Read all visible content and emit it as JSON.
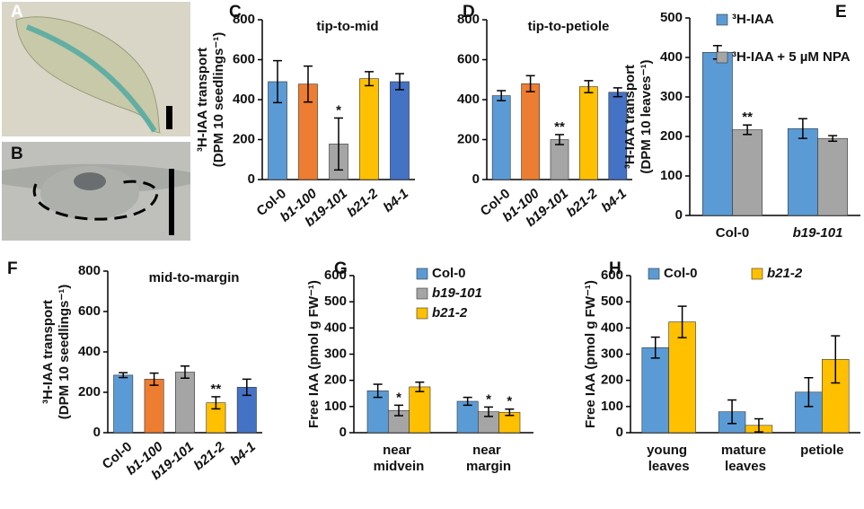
{
  "panels": [
    "A",
    "B"
  ],
  "chart_data": [
    {
      "type": "bar",
      "panel": "C",
      "title": "tip-to-mid",
      "ylabel": [
        "³H-IAA transport",
        "(DPM 10 seedlings⁻¹)"
      ],
      "categories": [
        "Col-0",
        "b1-100",
        "b19-101",
        "b21-2",
        "b4-1"
      ],
      "values": [
        490,
        478,
        178,
        505,
        490
      ],
      "errors": [
        105,
        90,
        130,
        35,
        40
      ],
      "colors": [
        "#5b9bd5",
        "#ed7d31",
        "#a5a5a5",
        "#ffc000",
        "#4472c4"
      ],
      "annotations": [
        null,
        null,
        "*",
        null,
        null
      ],
      "ylim": [
        0,
        800
      ],
      "yticks": [
        0,
        200,
        400,
        600,
        800
      ]
    },
    {
      "type": "bar",
      "panel": "D",
      "title": "tip-to-petiole",
      "categories": [
        "Col-0",
        "b1-100",
        "b19-101",
        "b21-2",
        "b4-1"
      ],
      "values": [
        420,
        480,
        200,
        465,
        437
      ],
      "errors": [
        25,
        40,
        25,
        30,
        22
      ],
      "colors": [
        "#5b9bd5",
        "#ed7d31",
        "#a5a5a5",
        "#ffc000",
        "#4472c4"
      ],
      "annotations": [
        null,
        null,
        "**",
        null,
        null
      ],
      "ylim": [
        0,
        800
      ],
      "yticks": [
        0,
        200,
        400,
        600,
        800
      ]
    },
    {
      "type": "grouped_bar",
      "panel": "E",
      "ylabel": [
        "³H-IAA transport",
        "(DPM 10 leaves⁻¹)"
      ],
      "categories": [
        "Col-0",
        "b19-101"
      ],
      "legend": "upper right",
      "series": [
        {
          "name": "³H-IAA",
          "color": "#5b9bd5",
          "values": [
            413,
            220
          ],
          "errors": [
            17,
            25
          ],
          "annotations": [
            null,
            null
          ]
        },
        {
          "name": "³H-IAA + 5 µM NPA",
          "color": "#a5a5a5",
          "values": [
            217,
            195
          ],
          "errors": [
            12,
            7
          ],
          "annotations": [
            "**",
            null
          ]
        }
      ],
      "ylim": [
        0,
        500
      ],
      "yticks": [
        0,
        100,
        200,
        300,
        400,
        500
      ]
    },
    {
      "type": "bar",
      "panel": "F",
      "title": "mid-to-margin",
      "ylabel": [
        "³H-IAA transport",
        "(DPM 10 seedlings⁻¹)"
      ],
      "categories": [
        "Col-0",
        "b1-100",
        "b19-101",
        "b21-2",
        "b4-1"
      ],
      "values": [
        285,
        265,
        300,
        148,
        225
      ],
      "errors": [
        12,
        30,
        30,
        30,
        40
      ],
      "colors": [
        "#5b9bd5",
        "#ed7d31",
        "#a5a5a5",
        "#ffc000",
        "#4472c4"
      ],
      "annotations": [
        null,
        null,
        null,
        "**",
        null
      ],
      "ylim": [
        0,
        800
      ],
      "yticks": [
        0,
        200,
        400,
        600,
        800
      ]
    },
    {
      "type": "grouped_bar",
      "panel": "G",
      "ylabel": [
        "Free IAA (pmol g FW⁻¹)"
      ],
      "categories": [
        "near midvein",
        "near margin"
      ],
      "legend": "upper left",
      "series": [
        {
          "name": "Col-0",
          "color": "#5b9bd5",
          "values": [
            160,
            120
          ],
          "errors": [
            25,
            15
          ],
          "annotations": [
            null,
            null
          ]
        },
        {
          "name": "b19-101",
          "color": "#a5a5a5",
          "values": [
            85,
            80
          ],
          "errors": [
            20,
            18
          ],
          "annotations": [
            "*",
            "*"
          ]
        },
        {
          "name": "b21-2",
          "color": "#ffc000",
          "values": [
            175,
            78
          ],
          "errors": [
            18,
            12
          ],
          "annotations": [
            null,
            "*"
          ]
        }
      ],
      "ylim": [
        0,
        600
      ],
      "yticks": [
        0,
        100,
        200,
        300,
        400,
        500,
        600
      ]
    },
    {
      "type": "grouped_bar",
      "panel": "H",
      "ylabel": [
        "Free IAA (pmol g FW⁻¹)"
      ],
      "categories": [
        "young leaves",
        "mature leaves",
        "petiole"
      ],
      "legend": "upper center",
      "series": [
        {
          "name": "Col-0",
          "color": "#5b9bd5",
          "values": [
            325,
            80,
            155
          ],
          "errors": [
            40,
            45,
            55
          ],
          "annotations": [
            null,
            null,
            null
          ]
        },
        {
          "name": "b21-2",
          "color": "#ffc000",
          "values": [
            423,
            28,
            280
          ],
          "errors": [
            60,
            25,
            90
          ],
          "annotations": [
            null,
            null,
            null
          ]
        }
      ],
      "ylim": [
        0,
        600
      ],
      "yticks": [
        0,
        100,
        200,
        300,
        400,
        500,
        600
      ]
    }
  ]
}
